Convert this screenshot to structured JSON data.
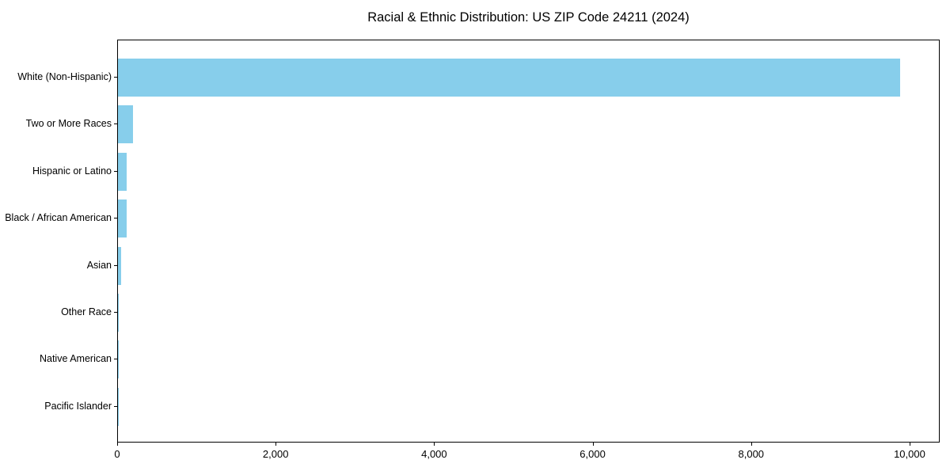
{
  "chart_data": {
    "type": "bar",
    "orientation": "horizontal",
    "title": "Racial & Ethnic Distribution: US ZIP Code 24211 (2024)",
    "categories": [
      "White (Non-Hispanic)",
      "Two or More Races",
      "Hispanic or Latino",
      "Black / African American",
      "Asian",
      "Other Race",
      "Native American",
      "Pacific Islander"
    ],
    "values": [
      9870,
      185,
      105,
      110,
      40,
      8,
      5,
      2
    ],
    "xlabel": "",
    "ylabel": "",
    "xlim": [
      0,
      10380
    ],
    "x_ticks": [
      0,
      2000,
      4000,
      6000,
      8000,
      10000
    ],
    "x_tick_labels": [
      "0",
      "2,000",
      "4,000",
      "6,000",
      "8,000",
      "10,000"
    ],
    "grid": false,
    "legend": null,
    "bar_color": "#87CEEB",
    "axis_color": "#000000",
    "background_color": "#ffffff"
  }
}
